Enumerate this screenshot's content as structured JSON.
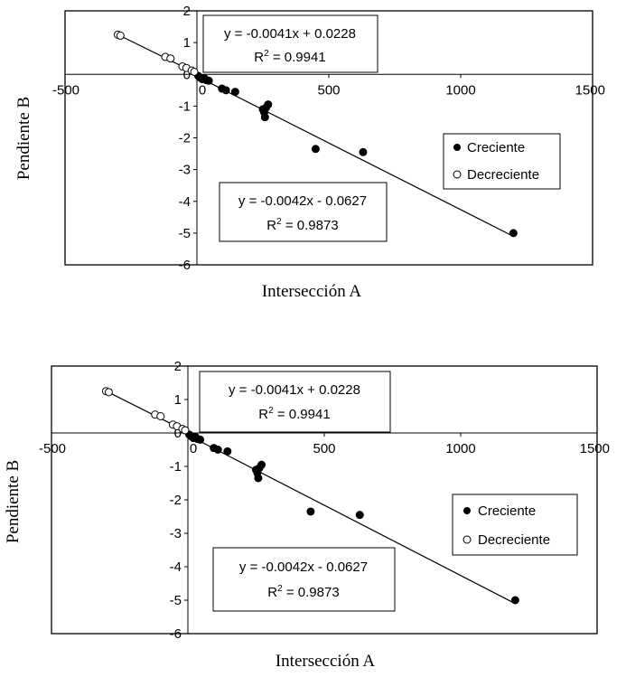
{
  "chart_data": [
    {
      "type": "scatter",
      "xlabel": "Intersección A",
      "ylabel": "Pendiente B",
      "xlim": [
        -500,
        1500
      ],
      "ylim": [
        -6,
        2
      ],
      "xticks": [
        "-500",
        "0",
        "500",
        "1000",
        "1500"
      ],
      "yticks": [
        "2",
        "1",
        "0",
        "-1",
        "-2",
        "-3",
        "-4",
        "-5",
        "-6"
      ],
      "legend": {
        "placement": "right",
        "entries": [
          "Creciente",
          "Decreciente"
        ]
      },
      "series": [
        {
          "name": "Creciente",
          "marker": "filled-circle",
          "x": [
            5,
            12,
            20,
            28,
            35,
            45,
            95,
            110,
            145,
            250,
            255,
            258,
            262,
            270,
            450,
            630,
            1200
          ],
          "y": [
            -0.05,
            -0.1,
            -0.15,
            -0.12,
            -0.18,
            -0.2,
            -0.45,
            -0.5,
            -0.55,
            -1.1,
            -1.2,
            -1.35,
            -1.05,
            -0.95,
            -2.35,
            -2.45,
            -5.0
          ]
        },
        {
          "name": "Decreciente",
          "marker": "open-circle",
          "x": [
            -300,
            -290,
            -120,
            -100,
            -55,
            -40,
            -20,
            -10
          ],
          "y": [
            1.25,
            1.22,
            0.55,
            0.5,
            0.25,
            0.2,
            0.12,
            0.08
          ]
        }
      ],
      "trendlines": [
        {
          "series": "Decreciente",
          "equation": "y = -0.0041x + 0.0228",
          "r2_prefix": "R",
          "r2_sup": "2",
          "r2_value": " = 0.9941",
          "slope": -0.0041,
          "intercept": 0.0228,
          "x_range": [
            -300,
            0
          ]
        },
        {
          "series": "Creciente",
          "equation": "y = -0.0042x - 0.0627",
          "r2_prefix": "R",
          "r2_sup": "2",
          "r2_value": " = 0.9873",
          "slope": -0.0042,
          "intercept": -0.0627,
          "x_range": [
            0,
            1200
          ]
        }
      ]
    },
    {
      "type": "scatter",
      "xlabel": "Intersección A",
      "ylabel": "Pendiente B",
      "xlim": [
        -500,
        1500
      ],
      "ylim": [
        -6,
        2
      ],
      "xticks": [
        "-500",
        "0",
        "500",
        "1000",
        "1500"
      ],
      "yticks": [
        "2",
        "1",
        "0",
        "-1",
        "-2",
        "-3",
        "-4",
        "-5",
        "-6"
      ],
      "legend": {
        "placement": "right",
        "entries": [
          "Creciente",
          "Decreciente"
        ]
      },
      "series": [
        {
          "name": "Creciente",
          "marker": "filled-circle",
          "x": [
            5,
            12,
            20,
            28,
            35,
            45,
            95,
            110,
            145,
            250,
            255,
            258,
            262,
            270,
            450,
            630,
            1200
          ],
          "y": [
            -0.05,
            -0.1,
            -0.15,
            -0.12,
            -0.18,
            -0.2,
            -0.45,
            -0.5,
            -0.55,
            -1.1,
            -1.2,
            -1.35,
            -1.05,
            -0.95,
            -2.35,
            -2.45,
            -5.0
          ]
        },
        {
          "name": "Decreciente",
          "marker": "open-circle",
          "x": [
            -300,
            -290,
            -120,
            -100,
            -55,
            -40,
            -20,
            -10
          ],
          "y": [
            1.25,
            1.22,
            0.55,
            0.5,
            0.25,
            0.2,
            0.12,
            0.08
          ]
        }
      ],
      "trendlines": [
        {
          "series": "Decreciente",
          "equation": "y = -0.0041x + 0.0228",
          "r2_prefix": "R",
          "r2_sup": "2",
          "r2_value": " = 0.9941",
          "slope": -0.0041,
          "intercept": 0.0228,
          "x_range": [
            -300,
            0
          ]
        },
        {
          "series": "Creciente",
          "equation": "y = -0.0042x - 0.0627",
          "r2_prefix": "R",
          "r2_sup": "2",
          "r2_value": " = 0.9873",
          "slope": -0.0042,
          "intercept": -0.0627,
          "x_range": [
            0,
            1200
          ]
        }
      ]
    }
  ]
}
